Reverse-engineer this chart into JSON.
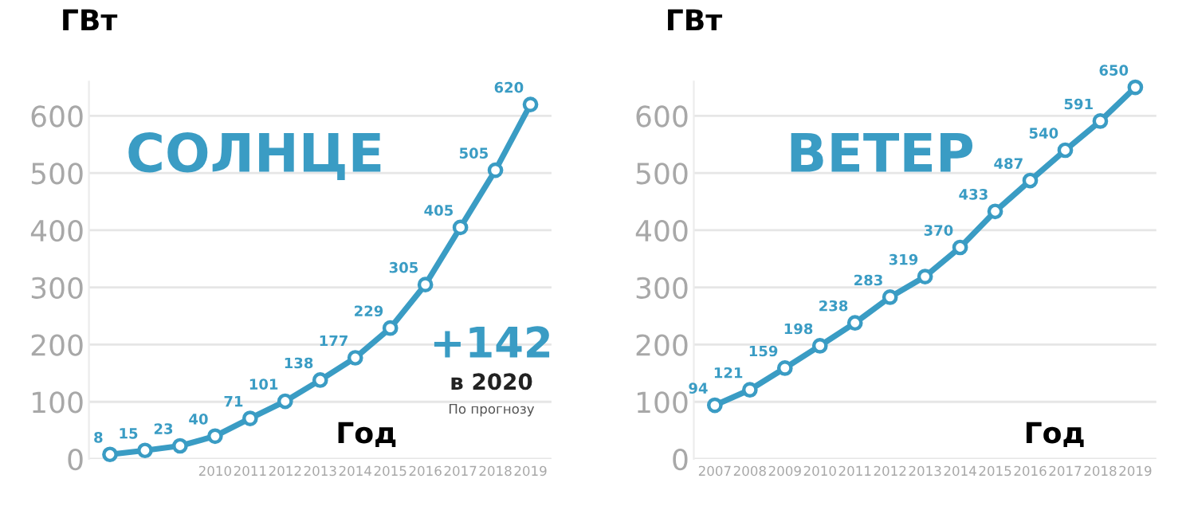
{
  "chart_data": [
    {
      "type": "line",
      "title": "СОЛНЦЕ",
      "xlabel": "Год",
      "ylabel": "ГВт",
      "categories": [
        null,
        null,
        null,
        "2010",
        "2011",
        "2012",
        "2013",
        "2014",
        "2015",
        "2016",
        "2017",
        "2018",
        "2019"
      ],
      "series": [
        {
          "color": "#3a9cc4",
          "values": [
            8,
            15,
            23,
            40,
            71,
            101,
            138,
            177,
            229,
            305,
            405,
            505,
            620
          ]
        }
      ],
      "ylim": [
        0,
        660
      ],
      "yticks": [
        0,
        100,
        200,
        300,
        400,
        500,
        600
      ],
      "grid": "y",
      "marker": "circle",
      "line_style": "solid",
      "data_labels": true,
      "annotations": [
        "+142",
        "в 2020",
        "По прогнозу"
      ]
    },
    {
      "type": "line",
      "title": "ВЕТЕР",
      "xlabel": "Год",
      "ylabel": "ГВт",
      "categories": [
        "2007",
        "2008",
        "2009",
        "2010",
        "2011",
        "2012",
        "2013",
        "2014",
        "2015",
        "2016",
        "2017",
        "2018",
        "2019"
      ],
      "series": [
        {
          "color": "#3a9cc4",
          "values": [
            94,
            121,
            159,
            198,
            238,
            283,
            319,
            370,
            433,
            487,
            540,
            591,
            650
          ]
        }
      ],
      "ylim": [
        0,
        660
      ],
      "yticks": [
        0,
        100,
        200,
        300,
        400,
        500,
        600
      ],
      "grid": "y",
      "marker": "circle",
      "line_style": "solid",
      "data_labels": true
    }
  ]
}
